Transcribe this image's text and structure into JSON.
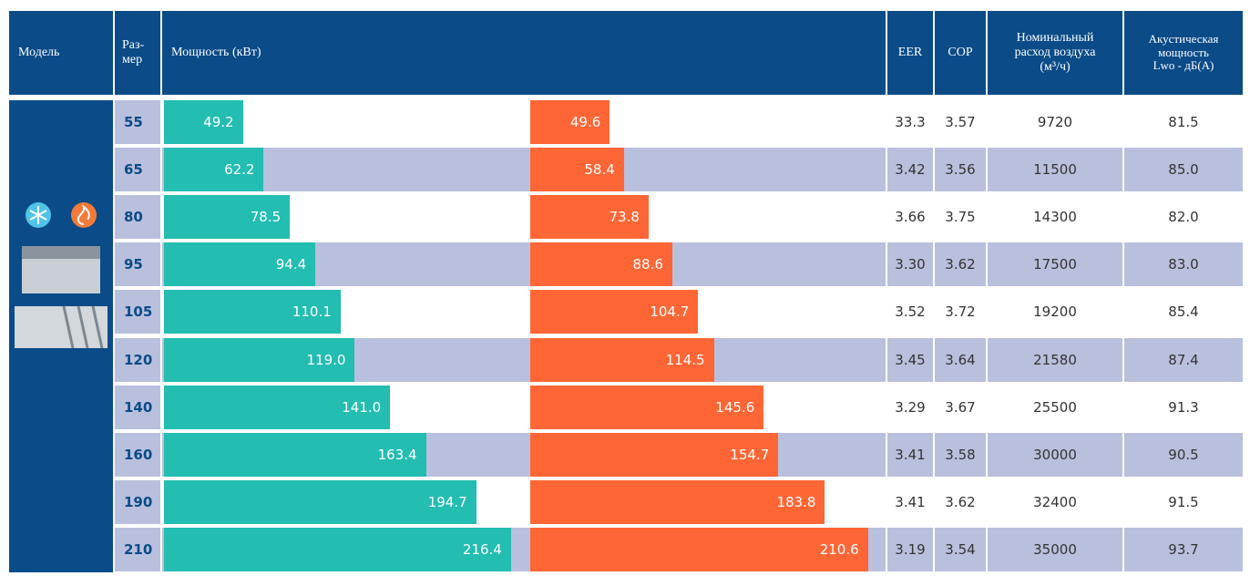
{
  "header": {
    "model": "Модель",
    "size": [
      "Раз-",
      "мер"
    ],
    "power": "Мощность (кВт)",
    "eer": "EER",
    "cop": "COP",
    "airflow": [
      "Номинальный",
      "расход воздуха",
      "(м³/ч)"
    ],
    "sound": [
      "Акустическая",
      "мощность",
      "Lwo - дБ(A)"
    ]
  },
  "sizes": [
    55,
    65,
    80,
    95,
    105,
    120,
    140,
    160,
    190,
    210
  ],
  "cooling": {
    "color": "#23bdb1",
    "values": [
      49.2,
      62.2,
      78.5,
      94.4,
      110.1,
      119.0,
      141.0,
      163.4,
      194.7,
      216.4
    ],
    "value_labels": [
      "49.2",
      "62.2",
      "78.5",
      "94.4",
      "110.1",
      "119.0",
      "141.0",
      "163.4",
      "194.7",
      "216.4"
    ]
  },
  "heating": {
    "color": "#ff6635",
    "values": [
      49.6,
      58.4,
      73.8,
      88.6,
      104.7,
      114.5,
      145.6,
      154.7,
      183.8,
      210.6
    ],
    "value_labels": [
      "49.6",
      "58.4",
      "73.8",
      "88.6",
      "104.7",
      "114.5",
      "145.6",
      "154.7",
      "183.8",
      "210.6"
    ]
  },
  "eer": [
    "33.3",
    "3.42",
    "3.66",
    "3.30",
    "3.52",
    "3.45",
    "3.29",
    "3.41",
    "3.41",
    "3.19"
  ],
  "cop": [
    "3.57",
    "3.56",
    "3.75",
    "3.62",
    "3.72",
    "3.64",
    "3.67",
    "3.58",
    "3.62",
    "3.54"
  ],
  "airflow": [
    9720,
    11500,
    14300,
    17500,
    19200,
    21580,
    25500,
    30000,
    32400,
    35000
  ],
  "sound": [
    "81.5",
    "85.0",
    "82.0",
    "83.0",
    "85.4",
    "87.4",
    "91.3",
    "90.5",
    "91.5",
    "93.7"
  ]
}
